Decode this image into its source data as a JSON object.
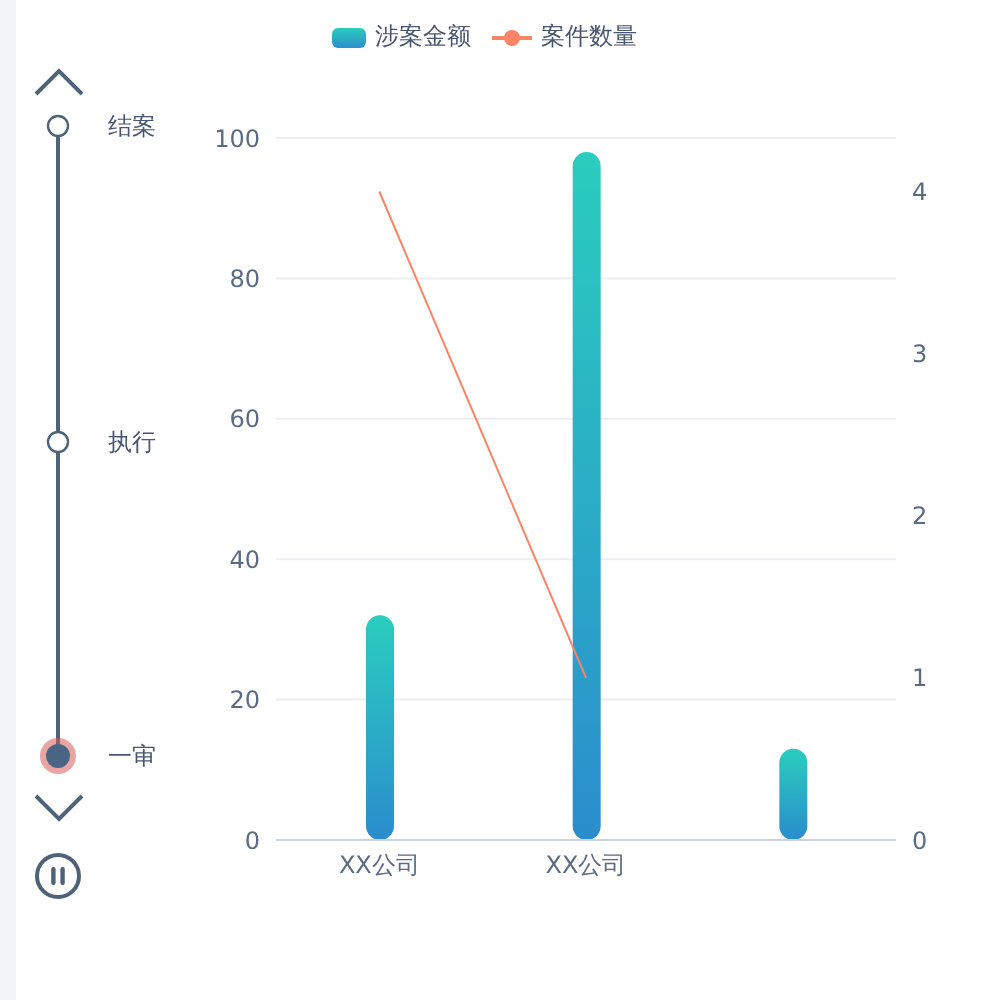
{
  "chart_data": {
    "type": "bar",
    "categories": [
      "XX公司",
      "XX公司",
      null
    ],
    "series": [
      {
        "name": "涉案金额",
        "color": "#2aaecd",
        "values": [
          32,
          98,
          13
        ]
      },
      {
        "name": "案件数量",
        "type": "line",
        "color": "#fb8466",
        "axis": "y2",
        "values": [
          4,
          1,
          null
        ]
      }
    ],
    "ylim": [
      0,
      100
    ],
    "yticks": [
      0,
      20,
      40,
      60,
      80,
      100
    ],
    "y2lim": [
      0,
      4.33
    ],
    "y2ticks": [
      0,
      1,
      2,
      3,
      4
    ],
    "grid": "y",
    "legend": "top",
    "marker": "none",
    "annotations": [
      "结案",
      "执行",
      "一审"
    ]
  }
}
